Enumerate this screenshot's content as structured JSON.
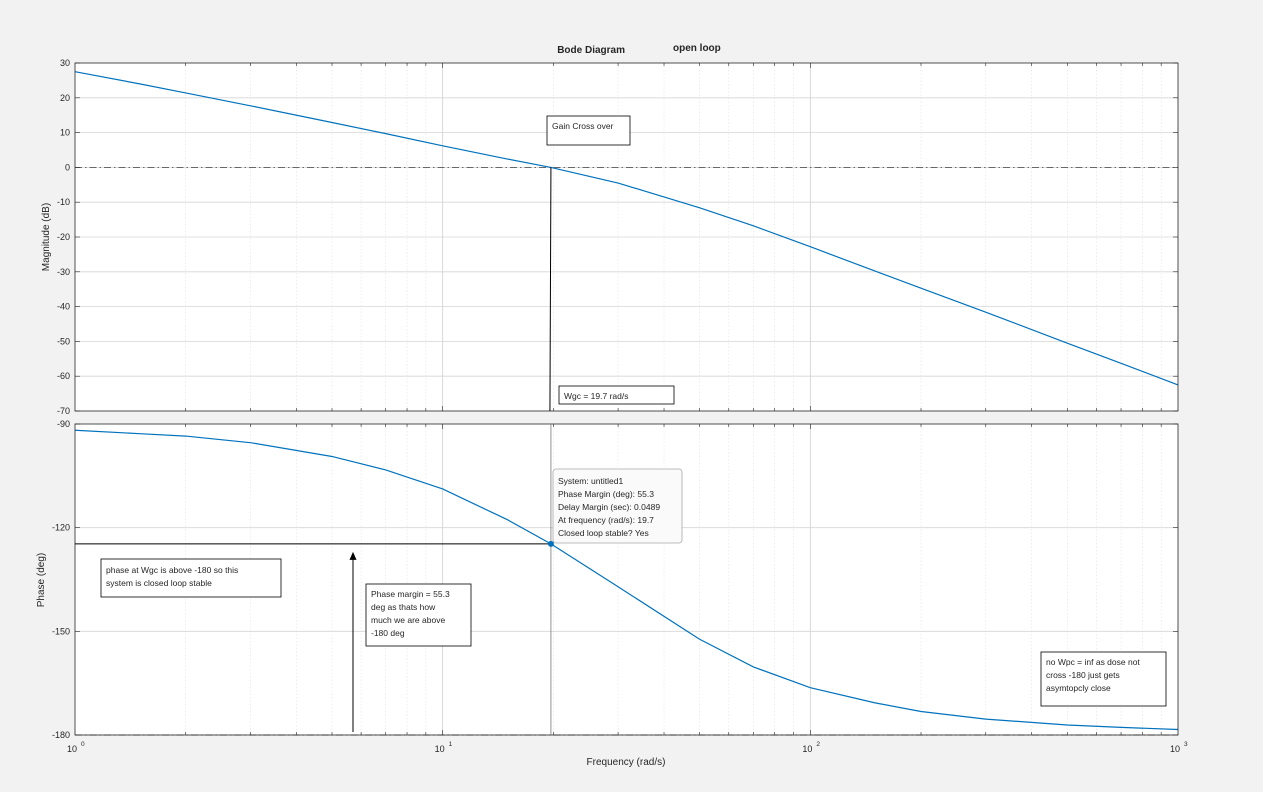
{
  "title": {
    "main": "Bode Diagram",
    "suffix": "open loop"
  },
  "colors": {
    "background": "#f2f2f2",
    "axes_bg": "#ffffff",
    "curve": "#0072bd",
    "grid": "#d9d9d9",
    "annotation": "#000000"
  },
  "chart_data": [
    {
      "type": "line",
      "panel": "magnitude",
      "ylabel": "Magnitude (dB)",
      "xscale": "log",
      "xlim": [
        1,
        1000
      ],
      "ylim": [
        -70,
        30
      ],
      "yticks": [
        30,
        20,
        10,
        0,
        -10,
        -20,
        -30,
        -40,
        -50,
        -60,
        -70
      ],
      "grid": true,
      "reference_lines": [
        0
      ],
      "series": [
        {
          "x": [
            1,
            1.5,
            2,
            3,
            5,
            7,
            10,
            15,
            19.7,
            30,
            50,
            70,
            100,
            150,
            200,
            300,
            500,
            700,
            1000
          ],
          "y": [
            27.5,
            24,
            21.4,
            17.7,
            12.9,
            9.7,
            6.2,
            2.4,
            0,
            -4.5,
            -11.6,
            -16.8,
            -22.8,
            -29.8,
            -34.7,
            -41.6,
            -50.5,
            -56.3,
            -62.5
          ]
        }
      ]
    },
    {
      "type": "line",
      "panel": "phase",
      "ylabel": "Phase (deg)",
      "xlabel": "Frequency  (rad/s)",
      "xscale": "log",
      "xlim": [
        1,
        1000
      ],
      "ylim": [
        -180,
        -90
      ],
      "yticks": [
        -90,
        -120,
        -150,
        -180
      ],
      "xticks": [
        {
          "value": 1,
          "base": "10",
          "exp": "0"
        },
        {
          "value": 10,
          "base": "10",
          "exp": "1"
        },
        {
          "value": 100,
          "base": "10",
          "exp": "2"
        },
        {
          "value": 1000,
          "base": "10",
          "exp": "3"
        }
      ],
      "grid": true,
      "reference_lines": [
        -180
      ],
      "series": [
        {
          "x": [
            1,
            1.5,
            2,
            3,
            5,
            7,
            10,
            15,
            19.7,
            30,
            50,
            70,
            100,
            150,
            200,
            300,
            500,
            700,
            1000
          ],
          "y": [
            -91.8,
            -92.8,
            -93.5,
            -95.4,
            -99.4,
            -103.3,
            -108.8,
            -117.7,
            -124.7,
            -137.1,
            -152.3,
            -160.3,
            -166.3,
            -170.7,
            -173.2,
            -175.4,
            -177.1,
            -177.8,
            -178.4
          ]
        }
      ]
    }
  ],
  "crossover": {
    "frequency": 19.7,
    "phase": -124.7
  },
  "annotations": {
    "gain_cross_over": "Gain Cross over",
    "wgc": "Wgc = 19.7 rad/s",
    "phase_stable_lines": [
      "phase at Wgc is above -180 so this",
      "system is closed loop stable"
    ],
    "phase_margin_lines": [
      "Phase margin = 55.3",
      "deg as thats how",
      "much we are above",
      "-180 deg"
    ],
    "no_wpc_lines": [
      "no Wpc = inf as dose not",
      "cross -180 just gets",
      "asymtopcly close"
    ]
  },
  "datatip": {
    "lines": [
      "System: untitled1",
      "Phase Margin (deg): 55.3",
      "Delay Margin (sec): 0.0489",
      "At frequency (rad/s): 19.7",
      "Closed loop stable? Yes"
    ]
  }
}
